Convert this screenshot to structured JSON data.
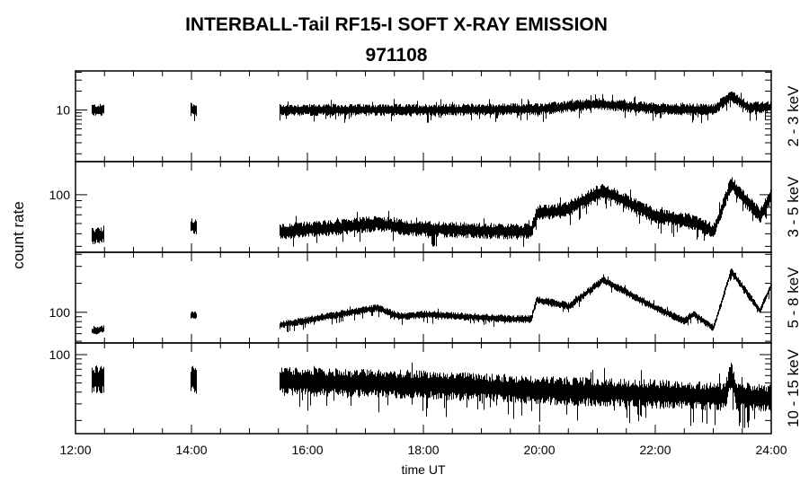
{
  "chart_data": {
    "type": "line",
    "title": "INTERBALL-Tail RF15-I SOFT X-RAY EMISSION",
    "subtitle": "971108",
    "xlabel": "time UT",
    "ylabel": "count rate",
    "xlim": [
      12,
      24
    ],
    "x_ticks": [
      {
        "v": 12,
        "label": "12:00"
      },
      {
        "v": 14,
        "label": "14:00"
      },
      {
        "v": 16,
        "label": "16:00"
      },
      {
        "v": 18,
        "label": "18:00"
      },
      {
        "v": 20,
        "label": "20:00"
      },
      {
        "v": 22,
        "label": "22:00"
      },
      {
        "v": 24,
        "label": "24:00"
      }
    ],
    "coverage": [
      [
        12.28,
        12.48
      ],
      [
        13.98,
        14.08
      ],
      [
        15.52,
        24
      ]
    ],
    "panels": [
      {
        "label": "2 - 3 keV",
        "ylim": [
          1.5,
          42
        ],
        "ytick": {
          "v": 10,
          "label": "10"
        },
        "noise": 0.07,
        "points": [
          [
            12,
            10
          ],
          [
            15.5,
            10
          ],
          [
            18,
            10
          ],
          [
            20,
            10.3
          ],
          [
            21,
            12.5
          ],
          [
            22,
            10.5
          ],
          [
            23,
            10
          ],
          [
            23.3,
            17
          ],
          [
            23.6,
            11
          ],
          [
            24,
            11
          ]
        ]
      },
      {
        "label": "3 - 5 keV",
        "ylim": [
          36,
          180
        ],
        "ytick": {
          "v": 100,
          "label": "100"
        },
        "noise": 0.045,
        "points": [
          [
            12.3,
            48
          ],
          [
            14,
            57
          ],
          [
            15.5,
            52
          ],
          [
            16.5,
            56
          ],
          [
            17.2,
            60
          ],
          [
            17.8,
            55
          ],
          [
            19.5,
            52
          ],
          [
            19.85,
            52
          ],
          [
            19.95,
            72
          ],
          [
            20.4,
            75
          ],
          [
            21.1,
            107
          ],
          [
            22,
            69
          ],
          [
            22.6,
            62
          ],
          [
            23,
            52
          ],
          [
            23.3,
            121
          ],
          [
            23.8,
            69
          ],
          [
            24,
            100
          ]
        ]
      },
      {
        "label": "5 - 8 keV",
        "ylim": [
          48,
          420
        ],
        "ytick": {
          "v": 100,
          "label": "100"
        },
        "noise": 0.03,
        "points": [
          [
            12.3,
            64
          ],
          [
            14,
            94
          ],
          [
            15.5,
            73
          ],
          [
            16.5,
            94
          ],
          [
            17.2,
            111
          ],
          [
            17.6,
            90
          ],
          [
            18,
            95
          ],
          [
            19.5,
            85
          ],
          [
            19.85,
            85
          ],
          [
            19.95,
            134
          ],
          [
            20.5,
            116
          ],
          [
            21.1,
            217
          ],
          [
            22,
            111
          ],
          [
            22.5,
            81
          ],
          [
            22.65,
            96
          ],
          [
            23,
            69
          ],
          [
            23.3,
            267
          ],
          [
            23.8,
            104
          ],
          [
            24,
            195
          ]
        ]
      },
      {
        "label": "10 - 15 keV",
        "ylim": [
          14.5,
          133
        ],
        "ytick": {
          "v": 100,
          "label": "100"
        },
        "noise": 0.11,
        "points": [
          [
            12.3,
            55
          ],
          [
            14,
            55
          ],
          [
            15.5,
            52
          ],
          [
            18,
            48
          ],
          [
            20,
            42
          ],
          [
            22,
            38
          ],
          [
            23.2,
            36
          ],
          [
            23.3,
            60
          ],
          [
            23.4,
            36
          ],
          [
            24,
            34
          ]
        ]
      }
    ]
  }
}
